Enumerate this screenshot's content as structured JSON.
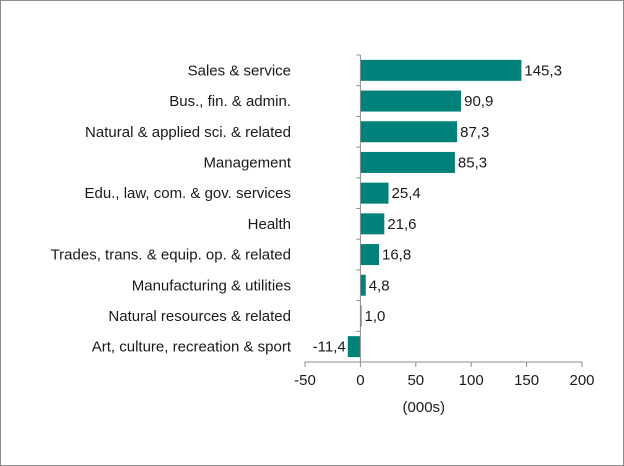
{
  "chart_data": {
    "type": "bar",
    "orientation": "horizontal",
    "categories": [
      "Sales & service",
      "Bus., fin. & admin.",
      "Natural & applied sci. & related",
      "Management",
      "Edu., law, com. & gov. services",
      "Health",
      "Trades, trans. & equip. op. & related",
      "Manufacturing & utilities",
      "Natural resources & related",
      "Art, culture, recreation & sport"
    ],
    "values": [
      145.3,
      90.9,
      87.3,
      85.3,
      25.4,
      21.6,
      16.8,
      4.8,
      1.0,
      -11.4
    ],
    "value_labels": [
      "145,3",
      "90,9",
      "87,3",
      "85,3",
      "25,4",
      "21,6",
      "16,8",
      "4,8",
      "1,0",
      "-11,4"
    ],
    "xlim": [
      -50,
      200
    ],
    "xticks": [
      -50,
      0,
      50,
      100,
      150,
      200
    ],
    "xtick_labels": [
      "-50",
      "0",
      "50",
      "100",
      "150",
      "200"
    ],
    "xlabel": "(000s)",
    "grid": false,
    "bar_color": "#00827a"
  }
}
